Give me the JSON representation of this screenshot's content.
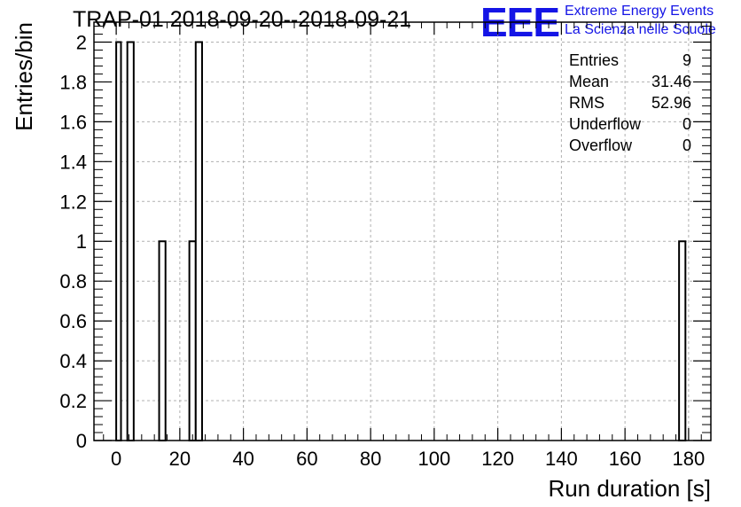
{
  "title": "TRAP-01 2018-09-20--2018-09-21",
  "logo": {
    "mark": "EEE",
    "line1": "Extreme Energy Events",
    "line2": "La Scienza nelle Scuole",
    "color": "#1414e6"
  },
  "stats": [
    {
      "label": "Entries",
      "value": "9"
    },
    {
      "label": "Mean",
      "value": "31.46"
    },
    {
      "label": "RMS",
      "value": "52.96"
    },
    {
      "label": "Underflow",
      "value": "0"
    },
    {
      "label": "Overflow",
      "value": "0"
    }
  ],
  "chart_data": {
    "type": "bar",
    "xlabel": "Run duration [s]",
    "ylabel": "Entries/bin",
    "xlim": [
      -7,
      187
    ],
    "ylim": [
      0,
      2.1
    ],
    "grid": true,
    "x_ticks": [
      0,
      20,
      40,
      60,
      80,
      100,
      120,
      140,
      160,
      180
    ],
    "y_ticks": [
      0,
      0.2,
      0.4,
      0.6,
      0.8,
      1,
      1.2,
      1.4,
      1.6,
      1.8,
      2
    ],
    "y_tick_labels": [
      "0",
      "0.2",
      "0.4",
      "0.6",
      "0.8",
      "1",
      "1.2",
      "1.4",
      "1.6",
      "1.8",
      "2"
    ],
    "bins": [
      {
        "x0": 0,
        "x1": 1.5,
        "value": 2
      },
      {
        "x0": 3.5,
        "x1": 5.5,
        "value": 2
      },
      {
        "x0": 13.5,
        "x1": 15.5,
        "value": 1
      },
      {
        "x0": 23,
        "x1": 25,
        "value": 1
      },
      {
        "x0": 25,
        "x1": 27,
        "value": 2
      },
      {
        "x0": 177,
        "x1": 179,
        "value": 1
      }
    ]
  }
}
